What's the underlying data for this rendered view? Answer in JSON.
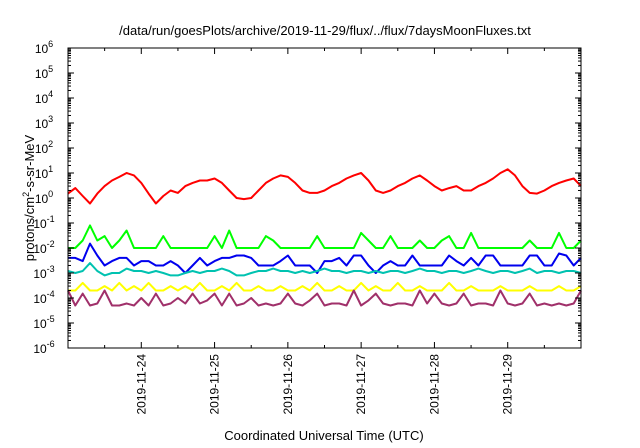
{
  "chart_data": {
    "type": "line",
    "title": "/data/run/goesPlots/archive/2019-11-29/flux/../flux/7daysMoonFluxes.txt",
    "xlabel": "Coordinated Universal Time (UTC)",
    "ylabel_parts": [
      "protons/cm",
      "2",
      "-s-sr-MeV"
    ],
    "yscale": "log",
    "ylim": [
      1e-06,
      1000000.0
    ],
    "y_ticks": [
      {
        "base": "10",
        "exp": "-6",
        "value": 1e-06
      },
      {
        "base": "10",
        "exp": "-5",
        "value": 1e-05
      },
      {
        "base": "10",
        "exp": "-4",
        "value": 0.0001
      },
      {
        "base": "10",
        "exp": "-3",
        "value": 0.001
      },
      {
        "base": "10",
        "exp": "-2",
        "value": 0.01
      },
      {
        "base": "10",
        "exp": "-1",
        "value": 0.1
      },
      {
        "base": "10",
        "exp": "0",
        "value": 1
      },
      {
        "base": "10",
        "exp": "1",
        "value": 10
      },
      {
        "base": "10",
        "exp": "2",
        "value": 100
      },
      {
        "base": "10",
        "exp": "3",
        "value": 1000
      },
      {
        "base": "10",
        "exp": "4",
        "value": 10000
      },
      {
        "base": "10",
        "exp": "5",
        "value": 100000
      },
      {
        "base": "10",
        "exp": "6",
        "value": 1000000
      }
    ],
    "xlim_days": [
      0,
      7
    ],
    "x_ticks": [
      {
        "label": "2019-11-24",
        "day": 1
      },
      {
        "label": "2019-11-25",
        "day": 2
      },
      {
        "label": "2019-11-26",
        "day": 3
      },
      {
        "label": "2019-11-27",
        "day": 4
      },
      {
        "label": "2019-11-28",
        "day": 5
      },
      {
        "label": "2019-11-29",
        "day": 6
      }
    ],
    "grid": false,
    "legend": "none",
    "series": [
      {
        "color": "#ff0000",
        "x": [
          0.0,
          0.1,
          0.2,
          0.3,
          0.4,
          0.5,
          0.6,
          0.7,
          0.8,
          0.9,
          1.0,
          1.1,
          1.2,
          1.3,
          1.4,
          1.5,
          1.6,
          1.7,
          1.8,
          1.9,
          2.0,
          2.1,
          2.2,
          2.3,
          2.4,
          2.5,
          2.6,
          2.7,
          2.8,
          2.9,
          3.0,
          3.1,
          3.2,
          3.3,
          3.4,
          3.5,
          3.6,
          3.7,
          3.8,
          3.9,
          4.0,
          4.1,
          4.2,
          4.3,
          4.4,
          4.5,
          4.6,
          4.7,
          4.8,
          4.9,
          5.0,
          5.1,
          5.2,
          5.3,
          5.4,
          5.5,
          5.6,
          5.7,
          5.8,
          5.9,
          6.0,
          6.1,
          6.2,
          6.3,
          6.4,
          6.5,
          6.6,
          6.7,
          6.8,
          6.9,
          7.0
        ],
        "y": [
          1.5,
          2.5,
          1.2,
          0.6,
          1.5,
          3,
          5,
          7,
          10,
          8,
          4,
          1.5,
          0.6,
          1.2,
          2,
          1.6,
          3,
          4,
          5,
          5,
          6,
          4,
          2,
          1,
          0.9,
          1,
          2,
          4,
          6,
          8,
          7,
          4,
          2,
          1.6,
          1.6,
          2,
          3,
          4,
          6,
          8,
          10,
          5,
          2,
          1.6,
          2,
          3,
          4,
          6,
          8,
          5,
          3,
          2,
          2.5,
          3,
          2,
          2,
          3,
          4,
          6,
          10,
          14,
          8,
          3,
          1.6,
          1.5,
          2,
          3,
          4,
          5,
          6,
          3
        ]
      },
      {
        "color": "#00ff00",
        "x": [
          0.0,
          0.1,
          0.2,
          0.3,
          0.4,
          0.5,
          0.6,
          0.7,
          0.8,
          0.9,
          1.0,
          1.1,
          1.2,
          1.3,
          1.4,
          1.5,
          1.6,
          1.7,
          1.8,
          1.9,
          2.0,
          2.1,
          2.2,
          2.3,
          2.4,
          2.5,
          2.6,
          2.7,
          2.8,
          2.9,
          3.0,
          3.1,
          3.2,
          3.3,
          3.4,
          3.5,
          3.6,
          3.7,
          3.8,
          3.9,
          4.0,
          4.1,
          4.2,
          4.3,
          4.4,
          4.5,
          4.6,
          4.7,
          4.8,
          4.9,
          5.0,
          5.1,
          5.2,
          5.3,
          5.4,
          5.5,
          5.6,
          5.7,
          5.8,
          5.9,
          6.0,
          6.1,
          6.2,
          6.3,
          6.4,
          6.5,
          6.6,
          6.7,
          6.8,
          6.9,
          7.0
        ],
        "y": [
          0.01,
          0.01,
          0.02,
          0.08,
          0.02,
          0.03,
          0.01,
          0.02,
          0.05,
          0.01,
          0.01,
          0.01,
          0.01,
          0.03,
          0.01,
          0.01,
          0.01,
          0.01,
          0.01,
          0.01,
          0.03,
          0.01,
          0.05,
          0.01,
          0.01,
          0.01,
          0.01,
          0.03,
          0.02,
          0.01,
          0.01,
          0.01,
          0.01,
          0.01,
          0.03,
          0.01,
          0.01,
          0.01,
          0.01,
          0.01,
          0.04,
          0.02,
          0.01,
          0.01,
          0.03,
          0.01,
          0.01,
          0.01,
          0.02,
          0.01,
          0.01,
          0.02,
          0.03,
          0.01,
          0.01,
          0.04,
          0.01,
          0.01,
          0.01,
          0.01,
          0.01,
          0.01,
          0.01,
          0.02,
          0.01,
          0.01,
          0.01,
          0.04,
          0.01,
          0.01,
          0.02
        ]
      },
      {
        "color": "#0000ee",
        "x": [
          0.0,
          0.1,
          0.2,
          0.3,
          0.4,
          0.5,
          0.6,
          0.7,
          0.8,
          0.9,
          1.0,
          1.1,
          1.2,
          1.3,
          1.4,
          1.5,
          1.6,
          1.7,
          1.8,
          1.9,
          2.0,
          2.1,
          2.2,
          2.3,
          2.4,
          2.5,
          2.6,
          2.7,
          2.8,
          2.9,
          3.0,
          3.1,
          3.2,
          3.3,
          3.4,
          3.5,
          3.6,
          3.7,
          3.8,
          3.9,
          4.0,
          4.1,
          4.2,
          4.3,
          4.4,
          4.5,
          4.6,
          4.7,
          4.8,
          4.9,
          5.0,
          5.1,
          5.2,
          5.3,
          5.4,
          5.5,
          5.6,
          5.7,
          5.8,
          5.9,
          6.0,
          6.1,
          6.2,
          6.3,
          6.4,
          6.5,
          6.6,
          6.7,
          6.8,
          6.9,
          7.0
        ],
        "y": [
          0.004,
          0.004,
          0.003,
          0.015,
          0.005,
          0.002,
          0.003,
          0.004,
          0.004,
          0.002,
          0.003,
          0.003,
          0.002,
          0.002,
          0.003,
          0.002,
          0.001,
          0.002,
          0.004,
          0.002,
          0.003,
          0.004,
          0.004,
          0.005,
          0.005,
          0.004,
          0.002,
          0.002,
          0.002,
          0.003,
          0.005,
          0.002,
          0.002,
          0.002,
          0.001,
          0.003,
          0.003,
          0.004,
          0.002,
          0.005,
          0.005,
          0.002,
          0.001,
          0.002,
          0.003,
          0.002,
          0.002,
          0.005,
          0.002,
          0.002,
          0.002,
          0.002,
          0.005,
          0.003,
          0.002,
          0.004,
          0.002,
          0.005,
          0.005,
          0.002,
          0.002,
          0.002,
          0.002,
          0.005,
          0.005,
          0.002,
          0.002,
          0.006,
          0.005,
          0.002,
          0.004
        ]
      },
      {
        "color": "#00c2b0",
        "x": [
          0.0,
          0.1,
          0.2,
          0.3,
          0.4,
          0.5,
          0.6,
          0.7,
          0.8,
          0.9,
          1.0,
          1.1,
          1.2,
          1.3,
          1.4,
          1.5,
          1.6,
          1.7,
          1.8,
          1.9,
          2.0,
          2.1,
          2.2,
          2.3,
          2.4,
          2.5,
          2.6,
          2.7,
          2.8,
          2.9,
          3.0,
          3.1,
          3.2,
          3.3,
          3.4,
          3.5,
          3.6,
          3.7,
          3.8,
          3.9,
          4.0,
          4.1,
          4.2,
          4.3,
          4.4,
          4.5,
          4.6,
          4.7,
          4.8,
          4.9,
          5.0,
          5.1,
          5.2,
          5.3,
          5.4,
          5.5,
          5.6,
          5.7,
          5.8,
          5.9,
          6.0,
          6.1,
          6.2,
          6.3,
          6.4,
          6.5,
          6.6,
          6.7,
          6.8,
          6.9,
          7.0
        ],
        "y": [
          0.0012,
          0.001,
          0.0012,
          0.0025,
          0.0012,
          0.0008,
          0.001,
          0.001,
          0.0015,
          0.0012,
          0.0012,
          0.001,
          0.0012,
          0.001,
          0.0008,
          0.0008,
          0.001,
          0.0012,
          0.001,
          0.0012,
          0.0012,
          0.0015,
          0.0012,
          0.0008,
          0.0008,
          0.001,
          0.0012,
          0.0012,
          0.0015,
          0.0012,
          0.0012,
          0.001,
          0.0012,
          0.001,
          0.0012,
          0.0015,
          0.0012,
          0.0012,
          0.001,
          0.0012,
          0.0012,
          0.001,
          0.0012,
          0.001,
          0.0012,
          0.0012,
          0.001,
          0.0012,
          0.0015,
          0.0012,
          0.0012,
          0.001,
          0.0012,
          0.0012,
          0.001,
          0.0012,
          0.0015,
          0.0012,
          0.001,
          0.0012,
          0.0012,
          0.001,
          0.0012,
          0.0015,
          0.001,
          0.0012,
          0.0012,
          0.001,
          0.0012,
          0.0012,
          0.001
        ]
      },
      {
        "color": "#ffff00",
        "x": [
          0.0,
          0.1,
          0.2,
          0.3,
          0.4,
          0.5,
          0.6,
          0.7,
          0.8,
          0.9,
          1.0,
          1.1,
          1.2,
          1.3,
          1.4,
          1.5,
          1.6,
          1.7,
          1.8,
          1.9,
          2.0,
          2.1,
          2.2,
          2.3,
          2.4,
          2.5,
          2.6,
          2.7,
          2.8,
          2.9,
          3.0,
          3.1,
          3.2,
          3.3,
          3.4,
          3.5,
          3.6,
          3.7,
          3.8,
          3.9,
          4.0,
          4.1,
          4.2,
          4.3,
          4.4,
          4.5,
          4.6,
          4.7,
          4.8,
          4.9,
          5.0,
          5.1,
          5.2,
          5.3,
          5.4,
          5.5,
          5.6,
          5.7,
          5.8,
          5.9,
          6.0,
          6.1,
          6.2,
          6.3,
          6.4,
          6.5,
          6.6,
          6.7,
          6.8,
          6.9,
          7.0
        ],
        "y": [
          0.0002,
          0.0002,
          0.0004,
          0.0002,
          0.0002,
          0.0003,
          0.0002,
          0.0004,
          0.0002,
          0.0003,
          0.0002,
          0.0004,
          0.0002,
          0.0002,
          0.0003,
          0.0002,
          0.0003,
          0.0002,
          0.0004,
          0.0002,
          0.0002,
          0.0003,
          0.0002,
          0.0004,
          0.0002,
          0.0002,
          0.0003,
          0.0002,
          0.0002,
          0.0003,
          0.0002,
          0.0002,
          0.0003,
          0.0002,
          0.0004,
          0.0002,
          0.0002,
          0.0003,
          0.0002,
          0.0002,
          0.0004,
          0.0002,
          0.0003,
          0.0002,
          0.0002,
          0.0004,
          0.0002,
          0.0002,
          0.0003,
          0.0002,
          0.0002,
          0.0002,
          0.0004,
          0.0002,
          0.0002,
          0.0003,
          0.0002,
          0.0002,
          0.0002,
          0.0003,
          0.0002,
          0.0002,
          0.0002,
          0.0003,
          0.0002,
          0.0002,
          0.0002,
          0.0003,
          0.0002,
          0.0002,
          0.0003
        ]
      },
      {
        "color": "#a0306a",
        "x": [
          0.0,
          0.1,
          0.2,
          0.3,
          0.4,
          0.5,
          0.6,
          0.7,
          0.8,
          0.9,
          1.0,
          1.1,
          1.2,
          1.3,
          1.4,
          1.5,
          1.6,
          1.7,
          1.8,
          1.9,
          2.0,
          2.1,
          2.2,
          2.3,
          2.4,
          2.5,
          2.6,
          2.7,
          2.8,
          2.9,
          3.0,
          3.1,
          3.2,
          3.3,
          3.4,
          3.5,
          3.6,
          3.7,
          3.8,
          3.9,
          4.0,
          4.1,
          4.2,
          4.3,
          4.4,
          4.5,
          4.6,
          4.7,
          4.8,
          4.9,
          5.0,
          5.1,
          5.2,
          5.3,
          5.4,
          5.5,
          5.6,
          5.7,
          5.8,
          5.9,
          6.0,
          6.1,
          6.2,
          6.3,
          6.4,
          6.5,
          6.6,
          6.7,
          6.8,
          6.9,
          7.0
        ],
        "y": [
          0.0002,
          5e-05,
          0.00015,
          5e-05,
          6e-05,
          0.0002,
          5e-05,
          5e-05,
          6e-05,
          5e-05,
          0.0001,
          5e-05,
          0.00015,
          5e-05,
          6e-05,
          0.0001,
          6e-05,
          0.00015,
          6e-05,
          8e-05,
          0.00015,
          5e-05,
          0.00015,
          5e-05,
          6e-05,
          0.0001,
          5e-05,
          6e-05,
          5e-05,
          6e-05,
          0.00015,
          6e-05,
          5e-05,
          8e-05,
          0.00015,
          5e-05,
          6e-05,
          6e-05,
          5e-05,
          0.0002,
          5e-05,
          8e-05,
          0.00015,
          6e-05,
          5e-05,
          6e-05,
          6e-05,
          5e-05,
          0.0002,
          6e-05,
          0.00015,
          6e-05,
          5e-05,
          6e-05,
          0.00015,
          5e-05,
          6e-05,
          6e-05,
          5e-05,
          0.0002,
          6e-05,
          5e-05,
          6e-05,
          0.00015,
          5e-05,
          6e-05,
          5e-05,
          6e-05,
          5e-05,
          6e-05,
          0.0002
        ]
      }
    ]
  }
}
